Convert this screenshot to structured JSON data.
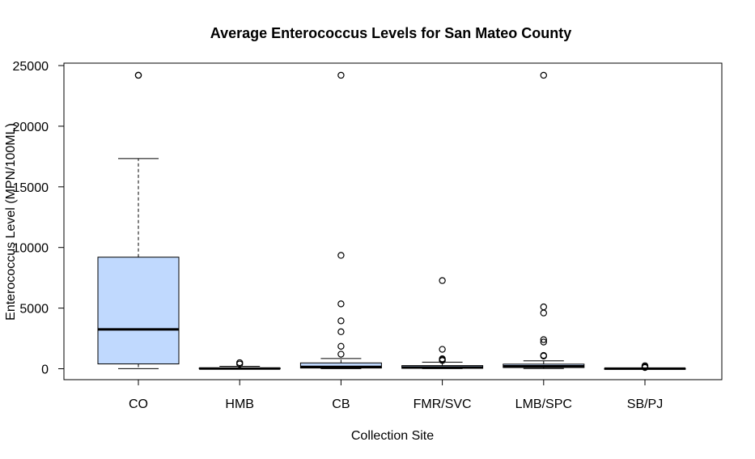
{
  "chart_data": {
    "type": "boxplot",
    "title": "Average Enterococcus Levels for San Mateo County",
    "xlabel": "Collection Site",
    "ylabel": "Enterococcus Level (MPN/100ML)",
    "ylim": [
      -900,
      25200
    ],
    "yticks": [
      0,
      5000,
      10000,
      15000,
      20000,
      25000
    ],
    "colors": {
      "box_fill": "#c0d9fe",
      "stroke": "#000000"
    },
    "categories": [
      "CO",
      "HMB",
      "CB",
      "FMR/SVC",
      "LMB/SPC",
      "SB/PJ"
    ],
    "boxes": [
      {
        "label": "CO",
        "lower_whisker": 10,
        "q1": 400,
        "median": 3250,
        "q3": 9200,
        "upper_whisker": 17330,
        "outliers": [
          24200,
          24200
        ]
      },
      {
        "label": "HMB",
        "lower_whisker": 0,
        "q1": 5,
        "median": 20,
        "q3": 60,
        "upper_whisker": 200,
        "outliers": [
          390,
          500
        ]
      },
      {
        "label": "CB",
        "lower_whisker": 10,
        "q1": 60,
        "median": 150,
        "q3": 480,
        "upper_whisker": 840,
        "outliers": [
          1200,
          1850,
          3050,
          3950,
          5350,
          9350,
          24200
        ]
      },
      {
        "label": "FMR/SVC",
        "lower_whisker": 10,
        "q1": 40,
        "median": 100,
        "q3": 260,
        "upper_whisker": 540,
        "outliers": [
          680,
          750,
          820,
          1600,
          7270
        ]
      },
      {
        "label": "LMB/SPC",
        "lower_whisker": 20,
        "q1": 100,
        "median": 200,
        "q3": 380,
        "upper_whisker": 650,
        "outliers": [
          1050,
          1100,
          2200,
          2400,
          4600,
          5100,
          24200
        ]
      },
      {
        "label": "SB/PJ",
        "lower_whisker": 0,
        "q1": 5,
        "median": 10,
        "q3": 30,
        "upper_whisker": 60,
        "outliers": [
          100,
          160,
          250
        ]
      }
    ]
  }
}
